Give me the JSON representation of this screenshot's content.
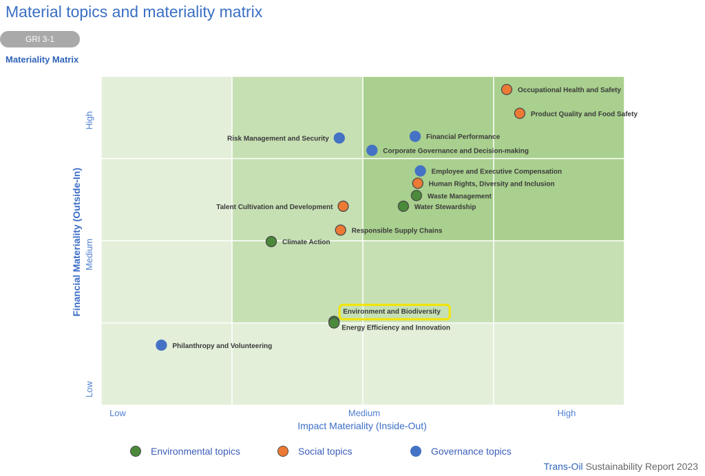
{
  "header": {
    "title": "Material topics and materiality matrix",
    "badge": "GRI 3-1",
    "section": "Materiality Matrix"
  },
  "colors": {
    "environmental": "#4a8a3a",
    "social": "#ec7a34",
    "governance": "#4472c4",
    "cell_light": "#e3efd9",
    "cell_mid": "#c6e0b4",
    "cell_dark": "#a9d08e",
    "highlight": "#f5e400",
    "accent_text": "#3b6dc6"
  },
  "legend": {
    "environmental": "Environmental topics",
    "social": "Social topics",
    "governance": "Governance topics"
  },
  "footer": {
    "brand": "Trans-Oil",
    "text": "Sustainability Report 2023"
  },
  "chart_data": {
    "type": "scatter",
    "xlabel": "Impact Materiality (Inside-Out)",
    "ylabel": "Financial Materiality (Outside-In)",
    "x_ticks": [
      "Low",
      "Medium",
      "High"
    ],
    "y_ticks": [
      "Low",
      "Medium",
      "High"
    ],
    "xlim": [
      0,
      4
    ],
    "ylim": [
      0,
      4
    ],
    "grid": true,
    "legend_position": "bottom",
    "points": [
      {
        "label": "Occupational Health and Safety",
        "category": "social",
        "x": 3.1,
        "y": 3.84
      },
      {
        "label": "Product Quality and Food Safety",
        "category": "social",
        "x": 3.2,
        "y": 3.55
      },
      {
        "label": "Financial Performance",
        "category": "governance",
        "x": 2.4,
        "y": 3.27
      },
      {
        "label": "Risk Management and Security",
        "category": "governance",
        "x": 1.82,
        "y": 3.25
      },
      {
        "label": "Corporate Governance and Decision-making",
        "category": "governance",
        "x": 2.07,
        "y": 3.1
      },
      {
        "label": "Employee and Executive Compensation",
        "category": "governance",
        "x": 2.44,
        "y": 2.85
      },
      {
        "label": "Human Rights, Diversity and Inclusion",
        "category": "social",
        "x": 2.42,
        "y": 2.7
      },
      {
        "label": "Waste Management",
        "category": "environmental",
        "x": 2.41,
        "y": 2.55
      },
      {
        "label": "Water Stewardship",
        "category": "environmental",
        "x": 2.31,
        "y": 2.42
      },
      {
        "label": "Talent Cultivation and Development",
        "category": "social",
        "x": 1.85,
        "y": 2.42
      },
      {
        "label": "Responsible Supply Chains",
        "category": "social",
        "x": 1.83,
        "y": 2.13
      },
      {
        "label": "Climate Action",
        "category": "environmental",
        "x": 1.3,
        "y": 1.99
      },
      {
        "label": "Environment and Biodiversity",
        "category": "environmental",
        "x": 1.78,
        "y": 1.02
      },
      {
        "label": "Energy Efficiency and Innovation",
        "category": "environmental",
        "x": 1.78,
        "y": 1.0
      },
      {
        "label": "Philanthropy and Volunteering",
        "category": "governance",
        "x": 0.46,
        "y": 0.73
      }
    ]
  }
}
